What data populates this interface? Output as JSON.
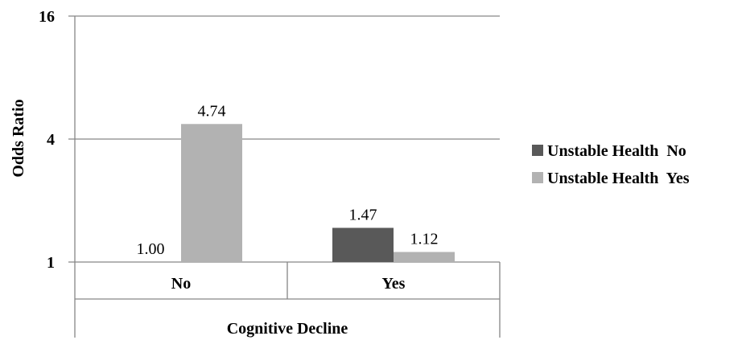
{
  "chart_data": {
    "type": "bar",
    "title": "",
    "xlabel": "Cognitive Decline",
    "ylabel": "Odds Ratio",
    "y_scale": "log2",
    "ylim": [
      1,
      16
    ],
    "y_ticks": [
      1,
      4,
      16
    ],
    "y_tick_labels": [
      "1",
      "4",
      "16"
    ],
    "categories": [
      "No",
      "Yes"
    ],
    "series": [
      {
        "name": "Unstable Health  No",
        "values": [
          1.0,
          1.47
        ],
        "labels": [
          "1.00",
          "1.47"
        ],
        "color": "#595959"
      },
      {
        "name": "Unstable Health  Yes",
        "values": [
          4.74,
          1.12
        ],
        "labels": [
          "4.74",
          "1.12"
        ],
        "color": "#b2b2b2"
      }
    ],
    "grid": "horizontal",
    "legend_position": "right"
  }
}
